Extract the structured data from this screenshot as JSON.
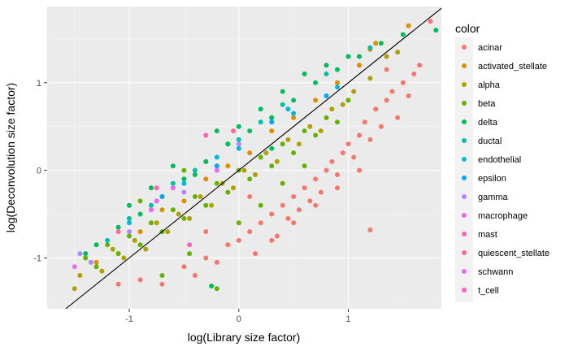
{
  "chart_data": {
    "type": "scatter",
    "title": "",
    "xlabel": "log(Library size factor)",
    "ylabel": "log(Deconvolution size factor)",
    "xlim": [
      -1.75,
      1.85
    ],
    "ylim": [
      -1.58,
      1.87
    ],
    "x_ticks": [
      {
        "value": -1,
        "label": "-1"
      },
      {
        "value": 0,
        "label": "0"
      },
      {
        "value": 1,
        "label": "1"
      }
    ],
    "y_ticks": [
      {
        "value": -1,
        "label": "-1"
      },
      {
        "value": 0,
        "label": "0"
      },
      {
        "value": 1,
        "label": "1"
      }
    ],
    "grid": true,
    "background": "#EBEBEB",
    "reference_line": {
      "type": "identity",
      "slope": 1,
      "intercept": 0,
      "color": "#000000"
    },
    "legend": {
      "title": "color",
      "position": "right",
      "entries": [
        {
          "name": "acinar",
          "color": "#F8766D"
        },
        {
          "name": "activated_stellate",
          "color": "#DB8E00"
        },
        {
          "name": "alpha",
          "color": "#AEA200"
        },
        {
          "name": "beta",
          "color": "#64B200"
        },
        {
          "name": "delta",
          "color": "#00BD5C"
        },
        {
          "name": "ductal",
          "color": "#00C1A7"
        },
        {
          "name": "endothelial",
          "color": "#00BADE"
        },
        {
          "name": "epsilon",
          "color": "#00A6FF"
        },
        {
          "name": "gamma",
          "color": "#B385FF"
        },
        {
          "name": "macrophage",
          "color": "#EF67EB"
        },
        {
          "name": "mast",
          "color": "#FF63B6"
        },
        {
          "name": "quiescent_stellate",
          "color": "#FF6C91"
        },
        {
          "name": "schwann",
          "color": "#E76BF3"
        },
        {
          "name": "t_cell",
          "color": "#FF62BC"
        }
      ]
    },
    "series": [
      {
        "name": "acinar",
        "color": "#F8766D",
        "points": [
          [
            -1.1,
            -1.3
          ],
          [
            -0.9,
            -1.25
          ],
          [
            -0.7,
            -1.3
          ],
          [
            -0.5,
            -1.1
          ],
          [
            -0.4,
            -1.2
          ],
          [
            -0.3,
            -1.0
          ],
          [
            -0.2,
            -1.05
          ],
          [
            -0.1,
            -0.85
          ],
          [
            0.0,
            -0.8
          ],
          [
            0.1,
            -0.7
          ],
          [
            0.15,
            -0.95
          ],
          [
            0.2,
            -0.6
          ],
          [
            0.3,
            -0.5
          ],
          [
            0.35,
            -0.75
          ],
          [
            0.4,
            -0.4
          ],
          [
            0.45,
            -0.55
          ],
          [
            0.5,
            -0.3
          ],
          [
            0.55,
            -0.45
          ],
          [
            0.6,
            -0.2
          ],
          [
            0.65,
            -0.35
          ],
          [
            0.7,
            -0.1
          ],
          [
            0.75,
            -0.25
          ],
          [
            0.8,
            0.0
          ],
          [
            0.85,
            0.1
          ],
          [
            0.9,
            -0.05
          ],
          [
            0.95,
            0.2
          ],
          [
            1.0,
            0.3
          ],
          [
            1.05,
            0.15
          ],
          [
            1.1,
            0.4
          ],
          [
            1.15,
            0.55
          ],
          [
            1.2,
            0.35
          ],
          [
            1.25,
            0.7
          ],
          [
            1.3,
            0.5
          ],
          [
            1.35,
            0.8
          ],
          [
            1.4,
            0.9
          ],
          [
            1.45,
            0.6
          ],
          [
            1.5,
            1.0
          ],
          [
            1.55,
            0.85
          ],
          [
            1.6,
            1.1
          ],
          [
            1.65,
            1.2
          ],
          [
            0.5,
            -0.6
          ],
          [
            0.7,
            -0.4
          ],
          [
            0.9,
            -0.2
          ],
          [
            0.3,
            -0.8
          ],
          [
            1.1,
            0.0
          ],
          [
            1.2,
            -0.68
          ],
          [
            1.75,
            1.7
          ],
          [
            1.35,
            1.15
          ],
          [
            -0.3,
            -0.7
          ],
          [
            0.1,
            -0.3
          ]
        ]
      },
      {
        "name": "activated_stellate",
        "color": "#DB8E00",
        "points": [
          [
            -1.3,
            -1.05
          ],
          [
            -1.1,
            -0.95
          ],
          [
            -0.9,
            -0.7
          ],
          [
            -0.7,
            -0.45
          ],
          [
            -0.5,
            -0.35
          ],
          [
            -0.3,
            -0.1
          ],
          [
            -0.1,
            0.05
          ],
          [
            0.1,
            0.2
          ],
          [
            0.3,
            0.45
          ],
          [
            0.5,
            0.6
          ],
          [
            0.7,
            0.8
          ],
          [
            0.9,
            1.0
          ],
          [
            1.1,
            1.2
          ],
          [
            1.25,
            1.45
          ],
          [
            1.2,
            1.38
          ],
          [
            1.55,
            1.65
          ]
        ]
      },
      {
        "name": "alpha",
        "color": "#AEA200",
        "points": [
          [
            -1.45,
            -1.2
          ],
          [
            -1.35,
            -1.05
          ],
          [
            -1.25,
            -1.15
          ],
          [
            -1.15,
            -0.9
          ],
          [
            -1.05,
            -1.0
          ],
          [
            -0.95,
            -0.8
          ],
          [
            -0.85,
            -0.9
          ],
          [
            -0.75,
            -0.6
          ],
          [
            -0.65,
            -0.7
          ],
          [
            -0.55,
            -0.5
          ],
          [
            -0.45,
            -0.55
          ],
          [
            -0.35,
            -0.3
          ],
          [
            -0.25,
            -0.4
          ],
          [
            -0.15,
            -0.15
          ],
          [
            -0.05,
            -0.2
          ],
          [
            0.05,
            0.0
          ],
          [
            0.15,
            -0.05
          ],
          [
            0.25,
            0.2
          ],
          [
            0.35,
            0.1
          ],
          [
            0.45,
            0.35
          ],
          [
            0.55,
            0.3
          ],
          [
            0.65,
            0.5
          ],
          [
            0.75,
            0.45
          ],
          [
            0.85,
            0.7
          ],
          [
            0.95,
            0.75
          ],
          [
            1.05,
            0.9
          ],
          [
            1.2,
            1.05
          ],
          [
            1.35,
            1.3
          ],
          [
            1.45,
            1.35
          ],
          [
            -1.5,
            -1.35
          ],
          [
            -0.3,
            0.1
          ],
          [
            -0.1,
            0.3
          ],
          [
            0.3,
            0.6
          ],
          [
            -0.6,
            -0.2
          ],
          [
            -1.0,
            -0.55
          ]
        ]
      },
      {
        "name": "beta",
        "color": "#64B200",
        "points": [
          [
            -1.4,
            -1.0
          ],
          [
            -1.3,
            -1.1
          ],
          [
            -1.2,
            -0.85
          ],
          [
            -1.1,
            -0.95
          ],
          [
            -1.0,
            -0.75
          ],
          [
            -0.9,
            -0.85
          ],
          [
            -0.8,
            -0.6
          ],
          [
            -0.7,
            -0.7
          ],
          [
            -0.6,
            -0.45
          ],
          [
            -0.5,
            -0.55
          ],
          [
            -0.4,
            -0.3
          ],
          [
            -0.3,
            -0.4
          ],
          [
            -0.2,
            -0.15
          ],
          [
            -0.1,
            -0.25
          ],
          [
            0.0,
            0.0
          ],
          [
            0.1,
            -0.1
          ],
          [
            0.2,
            0.15
          ],
          [
            0.3,
            0.05
          ],
          [
            0.4,
            0.3
          ],
          [
            0.5,
            0.2
          ],
          [
            0.6,
            0.45
          ],
          [
            0.7,
            0.4
          ],
          [
            0.8,
            0.6
          ],
          [
            0.9,
            0.55
          ],
          [
            1.0,
            0.8
          ],
          [
            -0.2,
            -1.35
          ],
          [
            -0.45,
            -0.95
          ],
          [
            -0.7,
            -1.2
          ],
          [
            0.0,
            -0.6
          ],
          [
            0.2,
            -0.4
          ],
          [
            -0.5,
            0.0
          ],
          [
            -0.9,
            -0.35
          ],
          [
            0.4,
            -0.15
          ],
          [
            0.6,
            0.05
          ]
        ]
      },
      {
        "name": "delta",
        "color": "#00BD5C",
        "points": [
          [
            -1.3,
            -0.85
          ],
          [
            -1.1,
            -0.65
          ],
          [
            -0.9,
            -0.5
          ],
          [
            -0.7,
            -0.3
          ],
          [
            -0.5,
            -0.1
          ],
          [
            -0.3,
            0.1
          ],
          [
            -0.1,
            0.3
          ],
          [
            0.1,
            0.45
          ],
          [
            0.3,
            0.6
          ],
          [
            0.5,
            0.8
          ],
          [
            0.7,
            1.0
          ],
          [
            0.9,
            1.15
          ],
          [
            1.1,
            1.3
          ],
          [
            1.3,
            1.45
          ],
          [
            1.5,
            1.55
          ],
          [
            1.8,
            1.6
          ],
          [
            -1.0,
            -0.4
          ],
          [
            -0.6,
            0.05
          ],
          [
            -0.2,
            0.45
          ],
          [
            0.2,
            0.7
          ],
          [
            0.6,
            1.1
          ],
          [
            0.8,
            1.2
          ],
          [
            -1.4,
            -0.95
          ],
          [
            -0.8,
            -0.2
          ],
          [
            0.0,
            0.5
          ],
          [
            0.4,
            0.9
          ],
          [
            -0.25,
            -1.32
          ],
          [
            0.3,
            0.25
          ],
          [
            -0.4,
            -0.05
          ],
          [
            1.0,
            1.3
          ]
        ]
      },
      {
        "name": "ductal",
        "color": "#00C1A7",
        "points": [
          [
            -1.2,
            -0.8
          ],
          [
            -0.8,
            -0.4
          ],
          [
            -0.4,
            0.0
          ],
          [
            0.0,
            0.35
          ],
          [
            0.4,
            0.75
          ],
          [
            0.8,
            1.1
          ],
          [
            1.2,
            1.4
          ],
          [
            -0.6,
            -0.15
          ],
          [
            0.2,
            0.55
          ],
          [
            -1.0,
            -0.55
          ]
        ]
      },
      {
        "name": "endothelial",
        "color": "#00BADE",
        "points": [
          [
            -1.0,
            -0.6
          ],
          [
            -0.5,
            -0.15
          ],
          [
            0.0,
            0.25
          ],
          [
            0.45,
            0.7
          ],
          [
            0.9,
            0.95
          ],
          [
            0.5,
            0.65
          ],
          [
            -0.2,
            0.15
          ]
        ]
      },
      {
        "name": "epsilon",
        "color": "#00A6FF",
        "points": [
          [
            -0.7,
            -0.3
          ],
          [
            -0.2,
            0.05
          ],
          [
            0.3,
            0.55
          ],
          [
            0.8,
            0.85
          ]
        ]
      },
      {
        "name": "gamma",
        "color": "#B385FF",
        "points": [
          [
            -1.35,
            -1.05
          ],
          [
            -1.0,
            -0.7
          ],
          [
            -0.5,
            -0.25
          ],
          [
            0.0,
            0.3
          ],
          [
            -1.45,
            -0.95
          ]
        ]
      },
      {
        "name": "macrophage",
        "color": "#EF67EB",
        "points": [
          [
            -1.5,
            -1.1
          ],
          [
            -0.8,
            -0.45
          ],
          [
            -0.2,
            0.0
          ]
        ]
      },
      {
        "name": "mast",
        "color": "#FF63B6",
        "points": [
          [
            -0.3,
            0.4
          ],
          [
            -0.75,
            -0.2
          ]
        ]
      },
      {
        "name": "quiescent_stellate",
        "color": "#FF6C91",
        "points": [
          [
            -1.1,
            -0.7
          ],
          [
            -0.05,
            0.45
          ]
        ]
      },
      {
        "name": "schwann",
        "color": "#E76BF3",
        "points": [
          [
            -0.6,
            -0.2
          ],
          [
            -0.75,
            -0.35
          ]
        ]
      },
      {
        "name": "t_cell",
        "color": "#FF62BC",
        "points": [
          [
            -0.45,
            -0.85
          ]
        ]
      }
    ]
  }
}
